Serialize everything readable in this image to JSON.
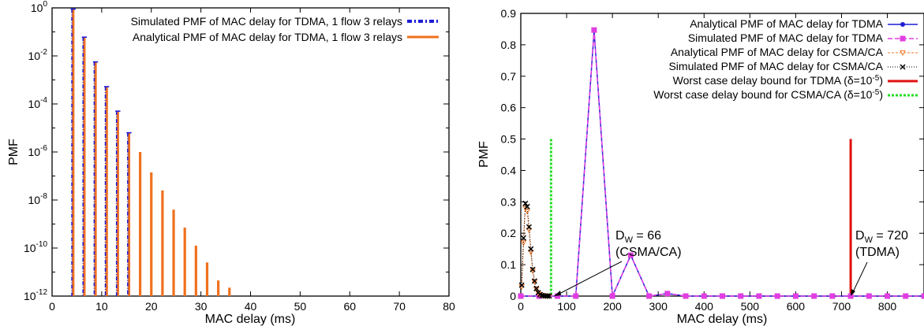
{
  "chart_data": [
    {
      "type": "bar",
      "xlabel": "MAC delay (ms)",
      "ylabel": "PMF",
      "xlim": [
        0,
        80
      ],
      "ylim_log10": [
        -12,
        0
      ],
      "yscale": "log",
      "x_ticks": [
        "0",
        "10",
        "20",
        "30",
        "40",
        "50",
        "60",
        "70",
        "80"
      ],
      "y_tick_exponents": [
        "0",
        "-2",
        "-4",
        "-6",
        "-8",
        "-10",
        "-12"
      ],
      "legend_position": "top-right",
      "series": [
        {
          "name": "Simulated PMF of MAC delay for TDMA, 1 flow 3 relays",
          "color": "#1d1dd6",
          "style": "dash-dot",
          "x": [
            4.25,
            6.5,
            8.75,
            11.0,
            13.25,
            15.5
          ],
          "log10_y": [
            -0.05,
            -1.22,
            -2.25,
            -3.28,
            -4.3,
            -5.2
          ]
        },
        {
          "name": "Analytical PMF of MAC delay for TDMA, 1 flow 3 relays",
          "color": "#f0701e",
          "style": "solid",
          "x": [
            4.25,
            6.5,
            8.75,
            11.0,
            13.25,
            15.5,
            17.75,
            20.0,
            22.25,
            24.5,
            26.75,
            29.0,
            31.25,
            33.5,
            35.75
          ],
          "log10_y": [
            -0.05,
            -1.22,
            -2.25,
            -3.28,
            -4.3,
            -5.2,
            -6.0,
            -6.85,
            -7.6,
            -8.4,
            -9.15,
            -9.9,
            -10.6,
            -11.35,
            -11.65
          ]
        }
      ]
    },
    {
      "type": "line",
      "xlabel": "MAC delay (ms)",
      "ylabel": "PMF",
      "xlim": [
        0,
        880
      ],
      "ylim": [
        0,
        0.9
      ],
      "x_ticks": [
        "0",
        "100",
        "200",
        "300",
        "400",
        "500",
        "600",
        "700",
        "800"
      ],
      "y_ticks": [
        "0",
        "0.1",
        "0.2",
        "0.3",
        "0.4",
        "0.5",
        "0.6",
        "0.7",
        "0.8",
        "0.9"
      ],
      "legend_position": "top-right",
      "series": [
        {
          "name": "Analytical PMF of MAC delay for TDMA",
          "color": "#1d1dd6",
          "marker": "circle",
          "x": [
            0,
            40,
            80,
            120,
            160,
            200,
            240,
            280,
            320,
            360,
            400,
            440,
            480,
            520,
            560,
            600,
            640,
            680,
            720,
            760,
            800,
            840,
            880
          ],
          "y": [
            0,
            0,
            0,
            0,
            0.845,
            0,
            0.13,
            0,
            0.008,
            0,
            0,
            0,
            0,
            0,
            0,
            0,
            0,
            0,
            0,
            0,
            0,
            0,
            0
          ]
        },
        {
          "name": "Simulated PMF of MAC delay for TDMA",
          "color": "#e13ee1",
          "marker": "square",
          "x": [
            0,
            40,
            80,
            120,
            160,
            200,
            240,
            280,
            320,
            360,
            400,
            440,
            480,
            520,
            560,
            600,
            640,
            680,
            720,
            760,
            800,
            840,
            880
          ],
          "y": [
            0,
            0,
            0,
            0,
            0.847,
            0,
            0.13,
            0,
            0.008,
            0,
            0,
            0,
            0,
            0,
            0,
            0,
            0,
            0,
            0,
            0,
            0,
            0,
            0
          ]
        },
        {
          "name": "Analytical PMF of MAC delay for CSMA/CA",
          "color": "#f07a2a",
          "marker": "triangle-down",
          "x": [
            2,
            6,
            10,
            14,
            18,
            22,
            26,
            30,
            34,
            38,
            42,
            46,
            50,
            54,
            58,
            62
          ],
          "y": [
            0.03,
            0.17,
            0.28,
            0.27,
            0.21,
            0.14,
            0.08,
            0.045,
            0.022,
            0.01,
            0.005,
            0.002,
            0.001,
            0.0005,
            0.0002,
            0.0001
          ]
        },
        {
          "name": "Simulated PMF of MAC delay for CSMA/CA",
          "color": "#000000",
          "marker": "x",
          "x": [
            2,
            6,
            10,
            14,
            18,
            22,
            26,
            30,
            34,
            38,
            42,
            46,
            50,
            54,
            58,
            62
          ],
          "y": [
            0.035,
            0.185,
            0.295,
            0.285,
            0.22,
            0.15,
            0.085,
            0.048,
            0.024,
            0.011,
            0.005,
            0.002,
            0.001,
            0.0005,
            0.0002,
            0.0001
          ]
        }
      ],
      "bounds": [
        {
          "name": "Worst case delay bound for TDMA (δ=10^-5)",
          "x": 720,
          "y": 0.5,
          "color": "#e01010",
          "style": "solid"
        },
        {
          "name": "Worst case delay bound for CSMA/CA (δ=10^-5)",
          "x": 66,
          "y": 0.5,
          "color": "#22dd22",
          "style": "dotted"
        }
      ],
      "annotations": [
        {
          "line1": "D",
          "sub": "W",
          "value": " = 66",
          "line2": "(CSMA/CA)",
          "target_x": 66,
          "target_y": 0
        },
        {
          "line1": "D",
          "sub": "W",
          "value": " = 720",
          "line2": "(TDMA)",
          "target_x": 720,
          "target_y": 0
        }
      ]
    }
  ]
}
